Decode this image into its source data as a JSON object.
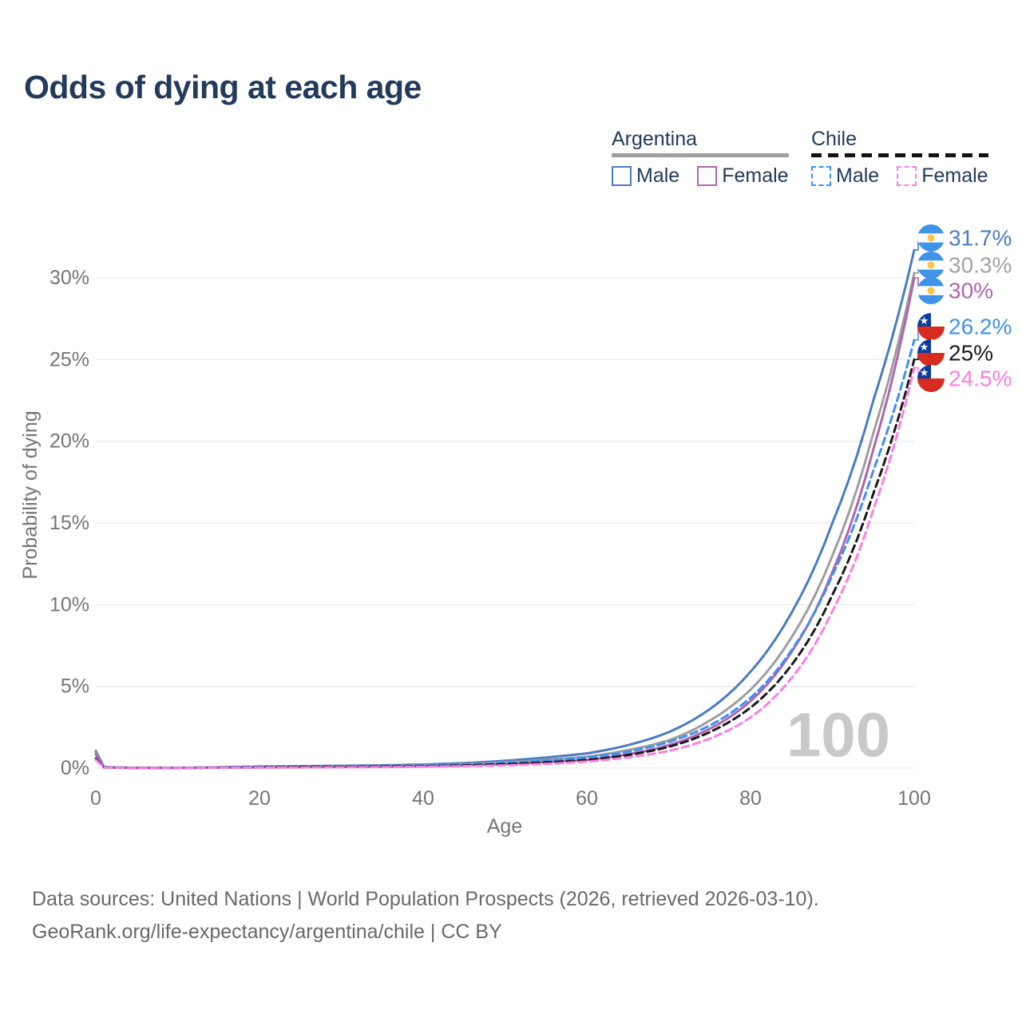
{
  "title": "Odds of dying at each age",
  "legend": {
    "groups": [
      {
        "id": "argentina",
        "label": "Argentina",
        "underline_color": "#9e9e9e",
        "underline_style": "solid",
        "items": [
          {
            "id": "ar_male",
            "label": "Male",
            "color": "#4a7cc2",
            "style": "solid"
          },
          {
            "id": "ar_female",
            "label": "Female",
            "color": "#b164ae",
            "style": "solid"
          }
        ]
      },
      {
        "id": "chile",
        "label": "Chile",
        "underline_color": "#111111",
        "underline_style": "dashed",
        "items": [
          {
            "id": "cl_male",
            "label": "Male",
            "color": "#3f90f4",
            "style": "dashed"
          },
          {
            "id": "cl_female",
            "label": "Female",
            "color": "#fc7ee3",
            "style": "dashed"
          }
        ]
      }
    ]
  },
  "chart_data": {
    "type": "line",
    "title": "Odds of dying at each age",
    "xlabel": "Age",
    "ylabel": "Probability of dying",
    "xlim": [
      0,
      100
    ],
    "ylim": [
      0,
      33.5
    ],
    "x_ticks": [
      0,
      20,
      40,
      60,
      80,
      100
    ],
    "y_ticks": [
      {
        "value": 0,
        "label": "0%"
      },
      {
        "value": 5,
        "label": "5%"
      },
      {
        "value": 10,
        "label": "10%"
      },
      {
        "value": 15,
        "label": "15%"
      },
      {
        "value": 20,
        "label": "20%"
      },
      {
        "value": 25,
        "label": "25%"
      },
      {
        "value": 30,
        "label": "30%"
      }
    ],
    "grid": true,
    "age_cursor": "100",
    "ages": [
      0,
      1,
      5,
      10,
      15,
      20,
      25,
      30,
      35,
      40,
      45,
      50,
      55,
      60,
      65,
      70,
      75,
      80,
      85,
      90,
      95,
      100
    ],
    "series": [
      {
        "name": "Argentina Male",
        "flag": "argentina",
        "color": "#4a7cc2",
        "label_color": "#4a7cc2",
        "dash": false,
        "end_label": "31.7%",
        "end_value": 31.7,
        "values": [
          1.05,
          0.07,
          0.02,
          0.02,
          0.05,
          0.1,
          0.12,
          0.14,
          0.17,
          0.22,
          0.31,
          0.45,
          0.65,
          0.9,
          1.4,
          2.2,
          3.6,
          5.9,
          9.5,
          15.0,
          22.5,
          31.7
        ]
      },
      {
        "name": "Argentina Both sexes",
        "flag": "argentina",
        "color": "#9e9e9e",
        "label_color": "#a2a2a2",
        "dash": false,
        "end_label": "30.3%",
        "end_value": 30.3,
        "values": [
          0.95,
          0.06,
          0.02,
          0.02,
          0.04,
          0.07,
          0.09,
          0.1,
          0.13,
          0.17,
          0.24,
          0.35,
          0.51,
          0.7,
          1.1,
          1.7,
          2.9,
          4.8,
          8.0,
          13.0,
          20.5,
          30.3
        ]
      },
      {
        "name": "Argentina Female",
        "flag": "argentina",
        "color": "#b164ae",
        "label_color": "#b164ae",
        "dash": false,
        "end_label": "30%",
        "end_value": 30,
        "values": [
          0.85,
          0.06,
          0.01,
          0.01,
          0.03,
          0.04,
          0.05,
          0.07,
          0.09,
          0.12,
          0.17,
          0.25,
          0.37,
          0.5,
          0.85,
          1.4,
          2.4,
          4.1,
          7.1,
          12.0,
          19.5,
          30.0
        ]
      },
      {
        "name": "Chile Male",
        "flag": "chile",
        "color": "#3f90f4",
        "label_color": "#3f90f4",
        "dash": true,
        "end_label": "26.2%",
        "end_value": 26.2,
        "values": [
          0.6,
          0.04,
          0.02,
          0.02,
          0.04,
          0.08,
          0.1,
          0.11,
          0.13,
          0.16,
          0.22,
          0.31,
          0.46,
          0.65,
          1.0,
          1.6,
          2.6,
          4.3,
          7.2,
          11.8,
          18.2,
          26.2
        ]
      },
      {
        "name": "Chile Both sexes",
        "flag": "chile",
        "color": "#1a1a1a",
        "label_color": "#1a1a1a",
        "dash": true,
        "end_label": "25%",
        "end_value": 25,
        "values": [
          0.55,
          0.04,
          0.01,
          0.01,
          0.03,
          0.05,
          0.07,
          0.08,
          0.1,
          0.12,
          0.17,
          0.24,
          0.35,
          0.5,
          0.8,
          1.3,
          2.2,
          3.7,
          6.3,
          10.6,
          16.8,
          25.0
        ]
      },
      {
        "name": "Chile Female",
        "flag": "chile",
        "color": "#fc7ee3",
        "label_color": "#fc7ee3",
        "dash": true,
        "end_label": "24.5%",
        "end_value": 24.5,
        "values": [
          0.5,
          0.03,
          0.01,
          0.01,
          0.02,
          0.03,
          0.04,
          0.05,
          0.06,
          0.09,
          0.12,
          0.17,
          0.26,
          0.4,
          0.65,
          1.05,
          1.8,
          3.1,
          5.5,
          9.6,
          15.8,
          24.5
        ]
      }
    ],
    "flag_colors": {
      "argentina_blue": "#3f93e8",
      "argentina_sun": "#f6c64a",
      "chile_blue": "#0a3d9e",
      "chile_red": "#d72b1f"
    }
  },
  "watermark": "100",
  "footer": {
    "line1": "Data sources: United Nations | World Population Prospects (2026, retrieved 2026-03-10).",
    "line2": "GeoRank.org/life-expectancy/argentina/chile | CC BY"
  }
}
